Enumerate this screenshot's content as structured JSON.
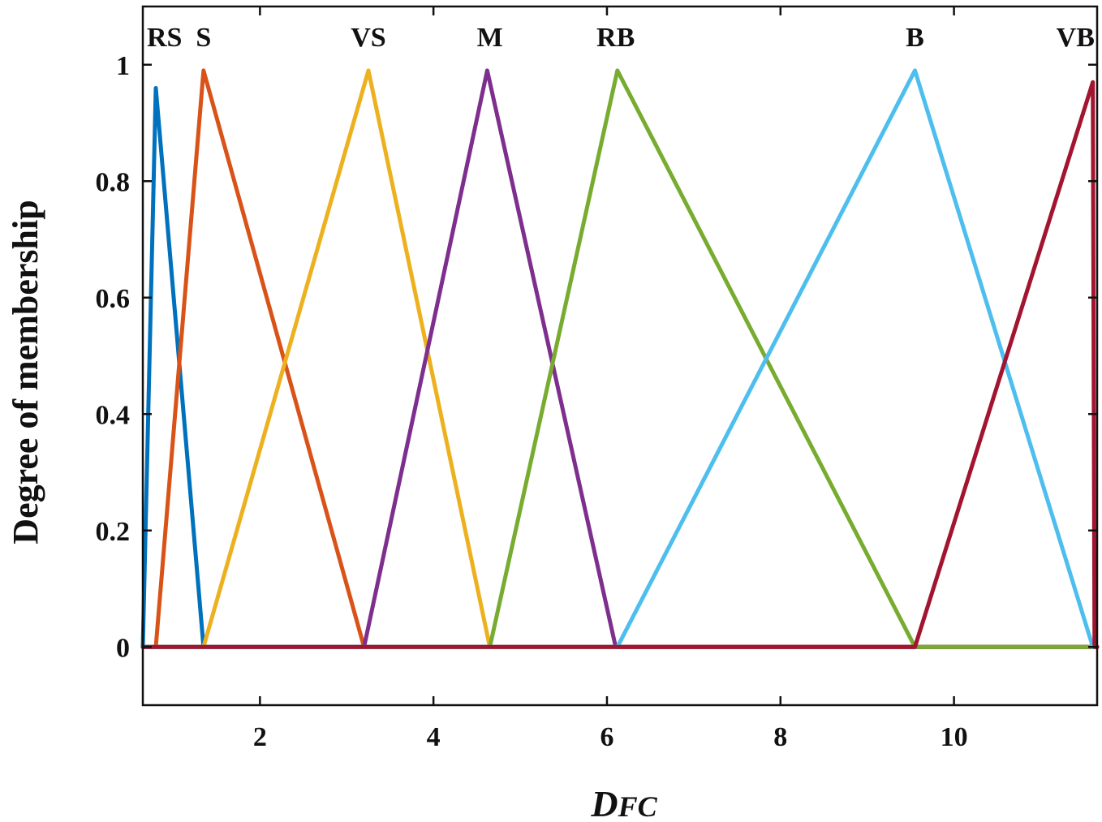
{
  "chart_data": {
    "type": "line",
    "title": "",
    "xlabel": "D",
    "xlabel_subscript": "FC",
    "ylabel": "Degree of membership",
    "xlim": [
      0.65,
      11.65
    ],
    "ylim": [
      -0.1,
      1.1
    ],
    "xticks": [
      2,
      4,
      6,
      8,
      10
    ],
    "xtick_labels": [
      "2",
      "4",
      "6",
      "8",
      "10"
    ],
    "yticks": [
      0,
      0.2,
      0.4,
      0.6,
      0.8,
      1
    ],
    "ytick_labels": [
      "0",
      "0.2",
      "0.4",
      "0.6",
      "0.8",
      "1"
    ],
    "grid": false,
    "series": [
      {
        "name": "RS",
        "color": "#0072BD",
        "x": [
          0.65,
          0.8,
          1.35,
          11.65
        ],
        "y": [
          0,
          0.96,
          0,
          0
        ]
      },
      {
        "name": "S",
        "color": "#D95319",
        "x": [
          0.65,
          0.8,
          1.35,
          3.2,
          11.65
        ],
        "y": [
          0,
          0,
          0.99,
          0,
          0
        ]
      },
      {
        "name": "VS",
        "color": "#EDB120",
        "x": [
          0.65,
          1.35,
          3.25,
          4.65,
          11.65
        ],
        "y": [
          0,
          0,
          0.99,
          0,
          0
        ]
      },
      {
        "name": "M",
        "color": "#7E2F8E",
        "x": [
          0.65,
          3.2,
          4.62,
          6.1,
          11.65
        ],
        "y": [
          0,
          0,
          0.99,
          0,
          0
        ]
      },
      {
        "name": "RB",
        "color": "#77AC30",
        "x": [
          0.65,
          4.65,
          6.12,
          9.55,
          11.65
        ],
        "y": [
          0,
          0,
          0.99,
          0,
          0
        ]
      },
      {
        "name": "B",
        "color": "#4DBEEE",
        "x": [
          0.65,
          6.12,
          9.55,
          11.6,
          11.65
        ],
        "y": [
          0,
          0,
          0.99,
          0,
          0
        ]
      },
      {
        "name": "VB",
        "color": "#A2142F",
        "x": [
          0.65,
          9.55,
          11.6,
          11.62,
          11.65
        ],
        "y": [
          0,
          0,
          0.97,
          0,
          0
        ]
      }
    ],
    "annotations": [
      {
        "text": "RS",
        "x": 0.9
      },
      {
        "text": "S",
        "x": 1.35
      },
      {
        "text": "VS",
        "x": 3.25
      },
      {
        "text": "M",
        "x": 4.65
      },
      {
        "text": "RB",
        "x": 6.1
      },
      {
        "text": "B",
        "x": 9.55
      },
      {
        "text": "VB",
        "x": 11.4
      }
    ]
  }
}
